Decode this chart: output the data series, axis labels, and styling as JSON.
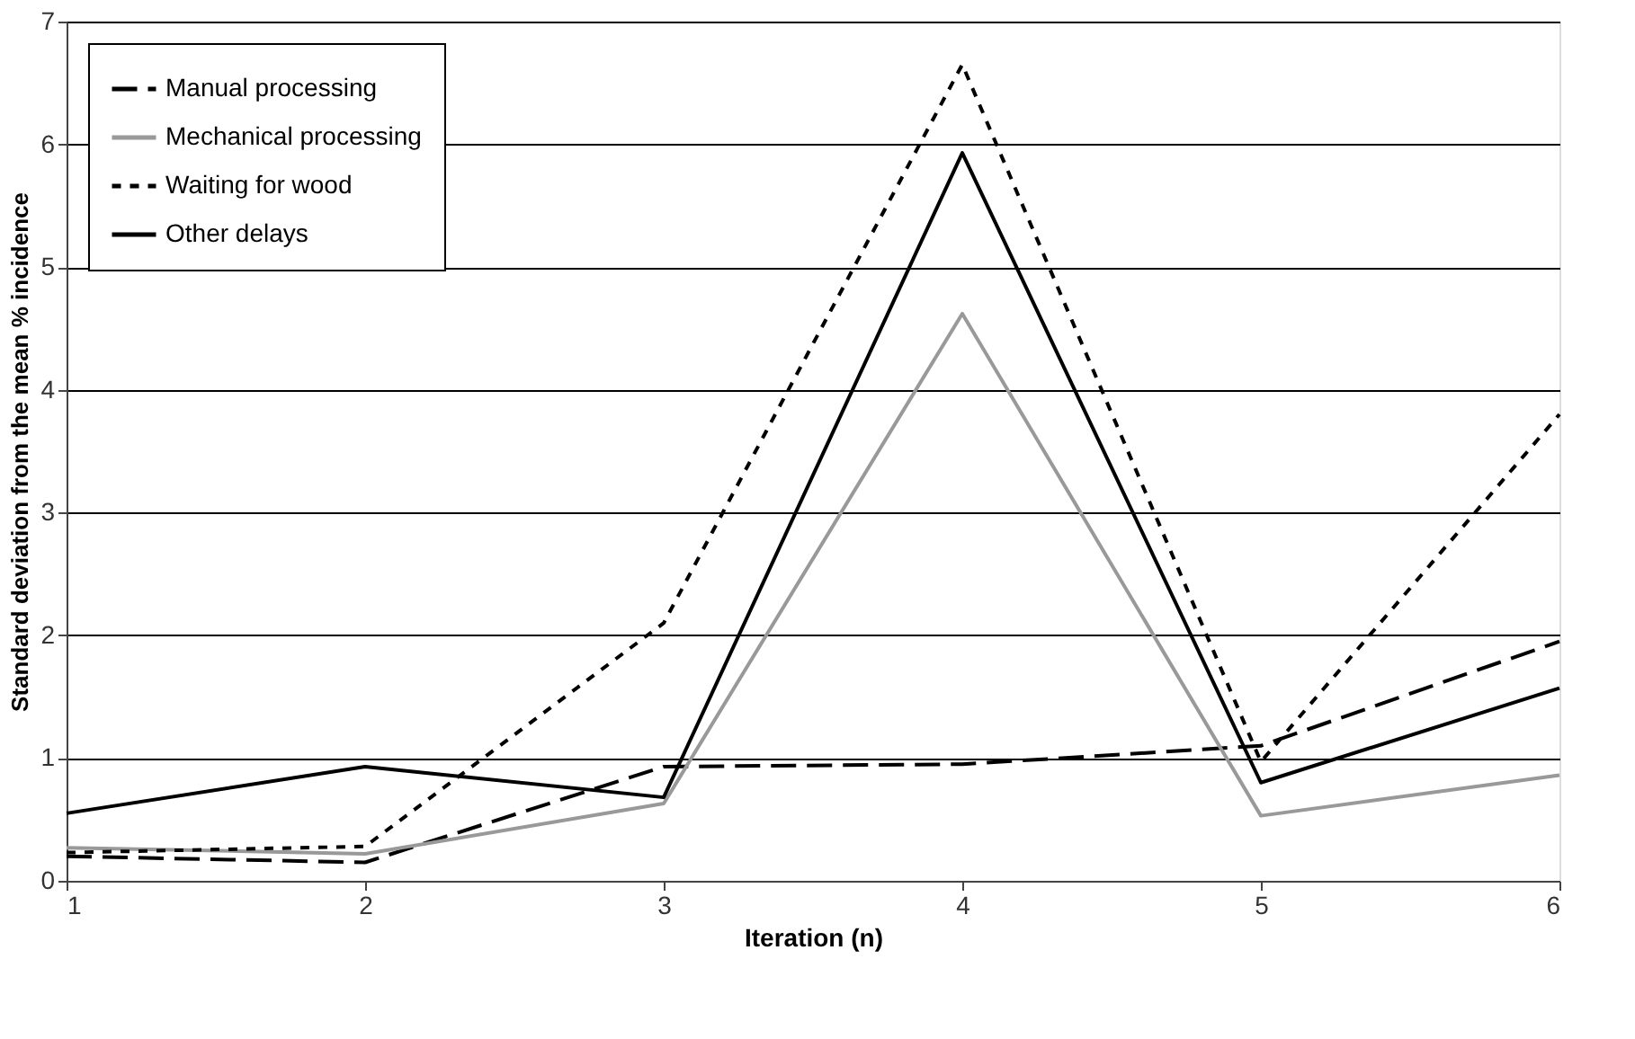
{
  "chart_data": {
    "type": "line",
    "xlabel": "Iteration (n)",
    "ylabel": "Standard deviation from the mean % incidence",
    "x": [
      1,
      2,
      3,
      4,
      5,
      6
    ],
    "xlim": [
      1,
      6
    ],
    "xticks": [
      1,
      2,
      3,
      4,
      5,
      6
    ],
    "ylim": [
      0,
      7
    ],
    "yticks": [
      0,
      1,
      2,
      3,
      4,
      5,
      6,
      7
    ],
    "grid": "y",
    "legend": "top left",
    "marker": "none",
    "series": [
      {
        "name": "Manual processing",
        "color": "#000000",
        "line_style": "dashed",
        "values": [
          0.2,
          0.15,
          0.93,
          0.95,
          1.1,
          1.95
        ]
      },
      {
        "name": "Mechanical processing",
        "color": "#999999",
        "line_style": "solid",
        "values": [
          0.27,
          0.22,
          0.63,
          4.62,
          0.53,
          0.86
        ]
      },
      {
        "name": "Waiting for wood",
        "color": "#000000",
        "line_style": "dotted",
        "values": [
          0.23,
          0.28,
          2.1,
          6.65,
          0.97,
          3.8
        ]
      },
      {
        "name": "Other delays",
        "color": "#000000",
        "line_style": "solid",
        "values": [
          0.55,
          0.93,
          0.68,
          5.93,
          0.8,
          1.57
        ]
      }
    ]
  }
}
